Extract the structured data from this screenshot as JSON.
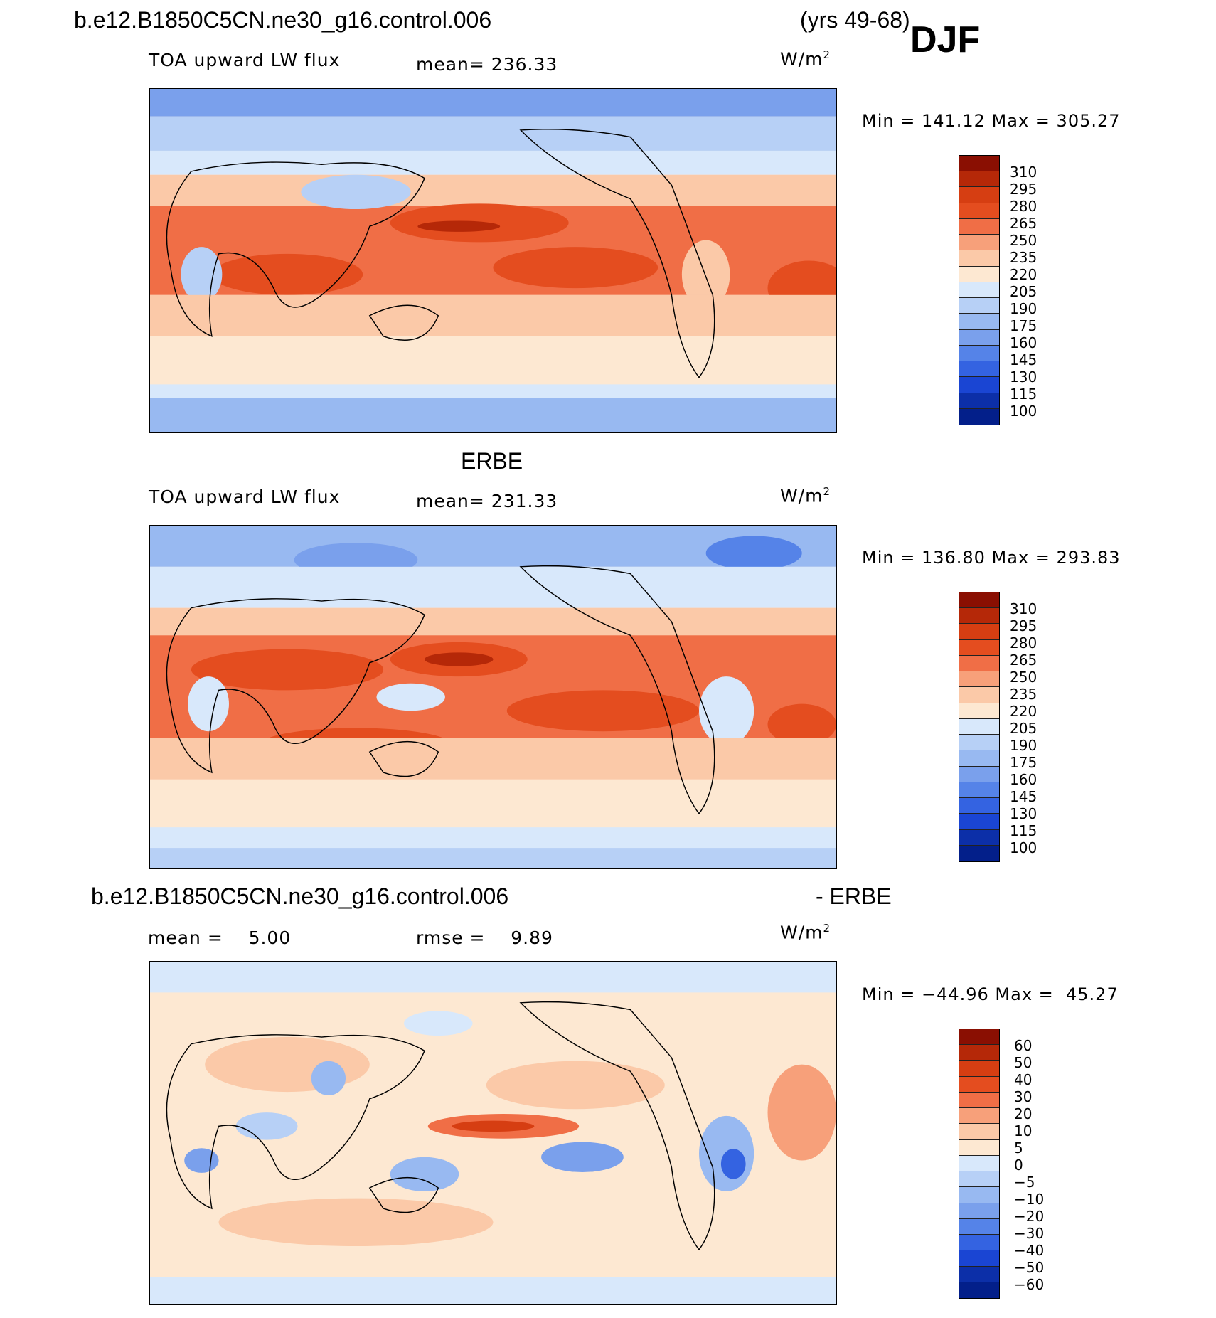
{
  "header": {
    "case": "b.e12.B1850C5CN.ne30_g16.control.006",
    "years": "(yrs 49-68)",
    "season": "DJF"
  },
  "colors": {
    "pos": [
      "#fde8d2",
      "#fbc9a8",
      "#f7a07a",
      "#f06e46",
      "#e44d1f",
      "#d63e12",
      "#b52808",
      "#8a0f02"
    ],
    "neg": [
      "#d8e8fb",
      "#b7d0f6",
      "#98b9f1",
      "#7aa0ec",
      "#5583e8",
      "#3463e1",
      "#1a45d3",
      "#0c2fa8",
      "#031f8a"
    ]
  },
  "panels": [
    {
      "title": "",
      "variable": "TOA upward LW flux",
      "mean_label": "mean= 236.33",
      "units_base": "W/m",
      "units_exp": "2",
      "minmax": "Min = 141.12 Max = 305.27",
      "levels": [
        "310",
        "295",
        "280",
        "265",
        "250",
        "235",
        "220",
        "205",
        "190",
        "175",
        "160",
        "145",
        "130",
        "115",
        "100"
      ]
    },
    {
      "title": "ERBE",
      "variable": "TOA upward LW flux",
      "mean_label": "mean= 231.33",
      "units_base": "W/m",
      "units_exp": "2",
      "minmax": "Min = 136.80 Max = 293.83",
      "levels": [
        "310",
        "295",
        "280",
        "265",
        "250",
        "235",
        "220",
        "205",
        "190",
        "175",
        "160",
        "145",
        "130",
        "115",
        "100"
      ]
    },
    {
      "title_left": "b.e12.B1850C5CN.ne30_g16.control.006",
      "title_right": "- ERBE",
      "mean_label": "mean =    5.00",
      "rmse_label": "rmse =    9.89",
      "units_base": "W/m",
      "units_exp": "2",
      "minmax": "Min = −44.96 Max =  45.27",
      "levels": [
        "60",
        "50",
        "40",
        "30",
        "20",
        "10",
        "5",
        "0",
        "−5",
        "−10",
        "−20",
        "−30",
        "−40",
        "−50",
        "−60"
      ]
    }
  ]
}
